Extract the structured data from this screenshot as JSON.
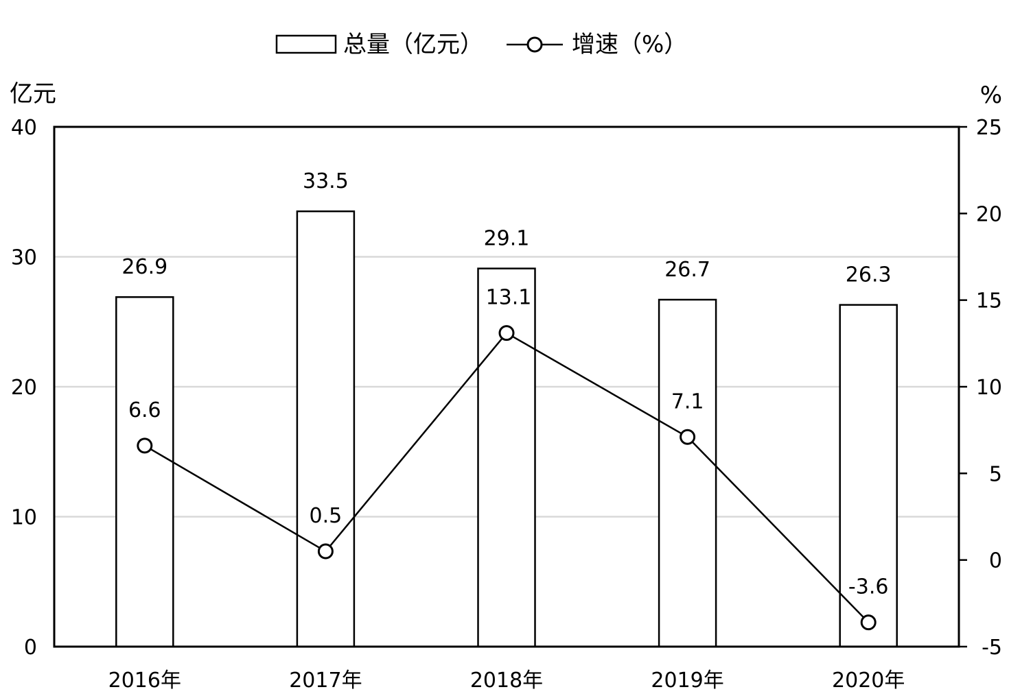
{
  "chart_data": {
    "type": "bar",
    "categories": [
      "2016年",
      "2017年",
      "2018年",
      "2019年",
      "2020年"
    ],
    "series": [
      {
        "name": "总量（亿元）",
        "type": "bar",
        "axis": "left",
        "values": [
          26.9,
          33.5,
          29.1,
          26.7,
          26.3
        ],
        "labels": [
          "26.9",
          "33.5",
          "29.1",
          "26.7",
          "26.3"
        ]
      },
      {
        "name": "增速（%）",
        "type": "line",
        "axis": "right",
        "values": [
          6.6,
          0.5,
          13.1,
          7.1,
          -3.6
        ],
        "labels": [
          "6.6",
          "0.5",
          "13.1",
          "7.1",
          "-3.6"
        ]
      }
    ],
    "y_left": {
      "label": "亿元",
      "range": [
        0,
        40
      ],
      "ticks": [
        "0",
        "10",
        "20",
        "30",
        "40"
      ],
      "tick_values": [
        0,
        10,
        20,
        30,
        40
      ]
    },
    "y_right": {
      "label": "%",
      "range": [
        -5,
        25
      ],
      "ticks": [
        "-5",
        "0",
        "5",
        "10",
        "15",
        "20",
        "25"
      ],
      "tick_values": [
        -5,
        0,
        5,
        10,
        15,
        20,
        25
      ]
    },
    "grid": true,
    "legend_position": "top-center"
  },
  "colors": {
    "bar_fill": "#ffffff",
    "bar_stroke": "#000000",
    "line": "#000000",
    "grid": "#d9d9d9",
    "axis": "#000000"
  }
}
